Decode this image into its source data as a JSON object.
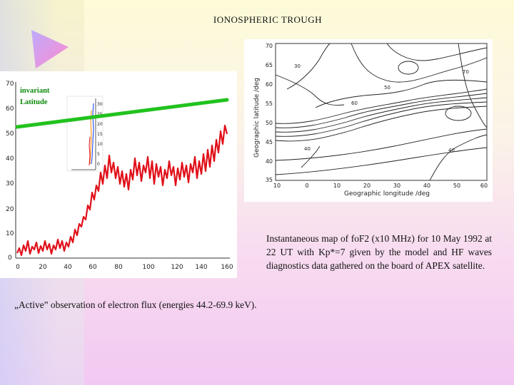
{
  "title": "IONOSPHERIC TROUGH",
  "captions": {
    "right": "Instantaneous map of foF2 (x10 MHz) for 10 May 1992 at 22 UT with Kp*=7 given by the model and HF waves diagnostics data gathered on the board of APEX satellite.",
    "left": "„Active” observation of electron flux (energies 44.2-69.9 keV)."
  },
  "left_plot": {
    "legend_line1": "invariant",
    "legend_line2": "Latitude",
    "y_ticks": [
      "70",
      "60",
      "50",
      "40",
      "30",
      "20",
      "10",
      "0"
    ],
    "x_ticks": [
      "0",
      "20",
      "40",
      "60",
      "80",
      "100",
      "120",
      "140",
      "160"
    ],
    "inset_ticks": [
      "30",
      "25",
      "20",
      "15",
      "10",
      "5",
      "0"
    ]
  },
  "right_plot": {
    "y_label": "Geographic latitude /deg",
    "x_label": "Geographic longitude /deg",
    "y_ticks": [
      "70",
      "65",
      "60",
      "55",
      "50",
      "45",
      "40",
      "35"
    ],
    "x_ticks": [
      "10",
      "0",
      "10",
      "20",
      "30",
      "40",
      "50",
      "60"
    ],
    "contour_labels": [
      "40",
      "40",
      "50",
      "70",
      "60",
      "30"
    ]
  },
  "colors": {
    "flux_line": "#e0101a",
    "latitude_line": "#22c21e",
    "legend_text": "#0a8a0a"
  }
}
